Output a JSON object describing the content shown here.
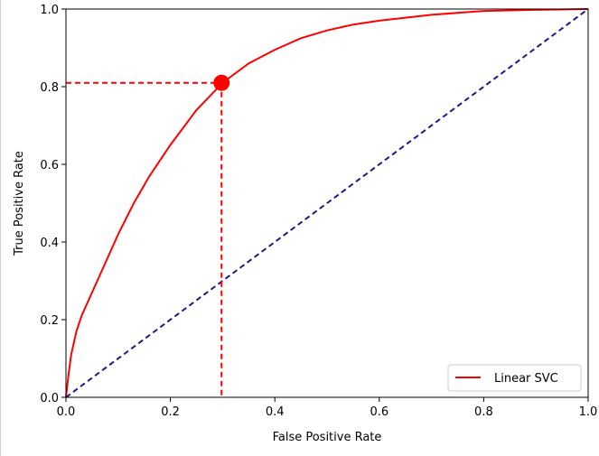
{
  "chart_data": {
    "type": "line",
    "title": "",
    "xlabel": "False Positive Rate",
    "ylabel": "True Positive Rate",
    "xlim": [
      0.0,
      1.0
    ],
    "ylim": [
      0.0,
      1.0
    ],
    "xticks": [
      "0.0",
      "0.2",
      "0.4",
      "0.6",
      "0.8",
      "1.0"
    ],
    "yticks": [
      "0.0",
      "0.2",
      "0.4",
      "0.6",
      "0.8",
      "1.0"
    ],
    "grid": false,
    "legend_position": "lower-right",
    "series": [
      {
        "name": "Linear SVC",
        "color": "#ff0000",
        "style": "solid",
        "x": [
          0.0,
          0.005,
          0.01,
          0.02,
          0.03,
          0.05,
          0.07,
          0.1,
          0.13,
          0.16,
          0.2,
          0.25,
          0.3,
          0.35,
          0.4,
          0.45,
          0.5,
          0.55,
          0.6,
          0.7,
          0.8,
          0.9,
          1.0
        ],
        "y": [
          0.0,
          0.06,
          0.11,
          0.17,
          0.21,
          0.27,
          0.33,
          0.42,
          0.5,
          0.57,
          0.65,
          0.74,
          0.81,
          0.86,
          0.895,
          0.925,
          0.945,
          0.96,
          0.97,
          0.985,
          0.995,
          0.998,
          1.0
        ]
      },
      {
        "name": "",
        "color": "#1a1a8c",
        "style": "dashed",
        "x": [
          0.0,
          1.0
        ],
        "y": [
          0.0,
          1.0
        ]
      }
    ],
    "highlight_point": {
      "x": 0.298,
      "y": 0.81,
      "color": "#ff0000"
    }
  }
}
